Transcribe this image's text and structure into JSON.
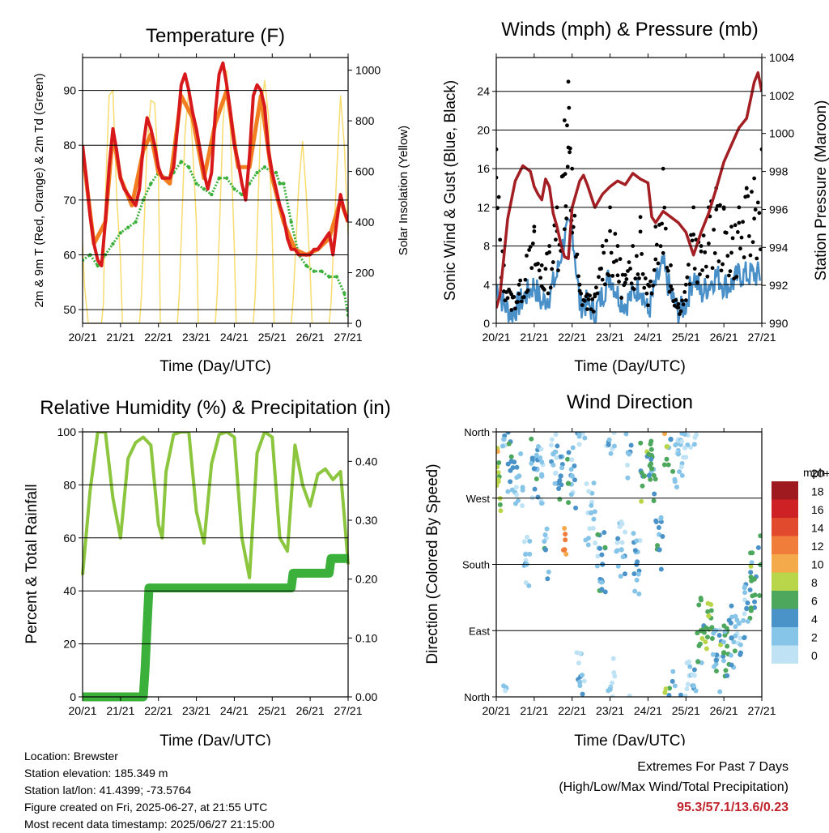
{
  "x_ticks": [
    "20/21",
    "21/21",
    "22/21",
    "23/21",
    "24/21",
    "25/21",
    "26/21",
    "27/21"
  ],
  "panels": {
    "temperature": {
      "title": "Temperature (F)",
      "xlabel": "Time (Day/UTC)",
      "ylabel_left": "2m & 9m T (Red, Orange) & 2m Td (Green)",
      "ylabel_right": "Solar Insolation (Yellow)",
      "yticks_left": [
        "50",
        "60",
        "70",
        "80",
        "90"
      ],
      "yticks_right": [
        "0",
        "200",
        "400",
        "600",
        "800",
        "1000"
      ]
    },
    "winds": {
      "title": "Winds (mph) & Pressure (mb)",
      "xlabel": "Time (Day/UTC)",
      "ylabel_left": "Sonic Wind & Gust (Blue, Black)",
      "ylabel_right": "Station Pressure (Maroon)",
      "yticks_left": [
        "0",
        "4",
        "8",
        "12",
        "16",
        "20",
        "24"
      ],
      "yticks_right": [
        "990",
        "992",
        "994",
        "996",
        "998",
        "1000",
        "1002",
        "1004"
      ]
    },
    "humidity": {
      "title": "Relative Humidity (%) & Precipitation (in)",
      "xlabel": "Time (Day/UTC)",
      "ylabel_left": "Percent & Total Rainfall",
      "yticks_left": [
        "0",
        "20",
        "40",
        "60",
        "80",
        "100"
      ],
      "yticks_right": [
        "0.00",
        "0.10",
        "0.20",
        "0.30",
        "0.40"
      ]
    },
    "direction": {
      "title": "Wind Direction",
      "xlabel": "Time (Day/UTC)",
      "ylabel_left": "Direction (Colored By Speed)",
      "yticks_left": [
        "North",
        "East",
        "South",
        "West",
        "North"
      ],
      "legend_unit": "mph",
      "legend_labels": [
        "0",
        "2",
        "4",
        "6",
        "8",
        "10",
        "12",
        "14",
        "16",
        "18",
        "20+"
      ],
      "legend_colors": [
        "#bfe3f5",
        "#86c4e8",
        "#4a93c9",
        "#4da85e",
        "#b9d64b",
        "#f4a94a",
        "#f07d3a",
        "#e14a2c",
        "#cd2126",
        "#9e1a1f"
      ]
    }
  },
  "chart_data": [
    {
      "type": "line",
      "title": "Temperature (F)",
      "xlabel": "Time (Day/UTC)",
      "ylabel": "2m & 9m T (Red, Orange) & 2m Td (Green)",
      "ylabel_right": "Solar Insolation (Yellow)",
      "x_unit": "days since 20/21",
      "ylim": [
        47.5,
        96
      ],
      "ylim_right": [
        0,
        1050
      ],
      "series": [
        {
          "name": "2m T",
          "color": "#d7191c",
          "x": [
            0,
            0.1,
            0.2,
            0.3,
            0.4,
            0.5,
            0.6,
            0.7,
            0.8,
            0.9,
            1,
            1.1,
            1.2,
            1.3,
            1.4,
            1.5,
            1.6,
            1.7,
            1.8,
            1.9,
            2,
            2.1,
            2.2,
            2.3,
            2.4,
            2.5,
            2.6,
            2.7,
            2.8,
            2.9,
            3,
            3.1,
            3.2,
            3.3,
            3.4,
            3.5,
            3.6,
            3.7,
            3.8,
            3.9,
            4,
            4.1,
            4.2,
            4.3,
            4.4,
            4.5,
            4.6,
            4.7,
            4.8,
            4.9,
            5,
            5.1,
            5.2,
            5.3,
            5.4,
            5.5,
            5.6,
            5.7,
            5.8,
            5.9,
            6,
            6.1,
            6.2,
            6.3,
            6.4,
            6.5,
            6.6,
            6.7,
            6.8,
            6.9,
            7
          ],
          "y": [
            80,
            74,
            67,
            62,
            59,
            58,
            66,
            76,
            83,
            79,
            74,
            72,
            71,
            70,
            69,
            72,
            80,
            85,
            83,
            80,
            76,
            74,
            74,
            74,
            76,
            83,
            91,
            93,
            90,
            86,
            83,
            79,
            75,
            72,
            75,
            86,
            93,
            95,
            91,
            86,
            80,
            77,
            73,
            70,
            78,
            89,
            91,
            90,
            87,
            79,
            75,
            72,
            69,
            67,
            63,
            61,
            61,
            60,
            60,
            60,
            60,
            61,
            61,
            62,
            63,
            64,
            60,
            66,
            71,
            68,
            66
          ]
        },
        {
          "name": "9m T",
          "color": "#f17f22",
          "x": [
            0,
            0.3,
            0.6,
            0.8,
            1,
            1.3,
            1.6,
            1.8,
            2,
            2.3,
            2.6,
            2.9,
            3.2,
            3.5,
            3.8,
            4.1,
            4.4,
            4.7,
            5,
            5.3,
            5.6,
            5.9,
            6.2,
            6.5,
            6.8,
            7
          ],
          "y": [
            79,
            62,
            66,
            82,
            74,
            69,
            79,
            82,
            75,
            73,
            89,
            85,
            74,
            84,
            90,
            76,
            76,
            89,
            74,
            66,
            61,
            60,
            61,
            63,
            70,
            66
          ]
        },
        {
          "name": "2m Td",
          "color": "#3bb03b",
          "x": [
            0,
            0.2,
            0.4,
            0.6,
            0.8,
            1,
            1.2,
            1.4,
            1.6,
            1.8,
            2,
            2.2,
            2.4,
            2.6,
            2.8,
            3,
            3.2,
            3.4,
            3.6,
            3.8,
            4,
            4.2,
            4.4,
            4.6,
            4.8,
            5,
            5.1,
            5.2,
            5.3,
            5.5,
            5.7,
            5.9,
            6.1,
            6.3,
            6.5,
            6.7,
            6.9,
            7
          ],
          "y": [
            59,
            60,
            58,
            60,
            62,
            64,
            65,
            66,
            70,
            73,
            75,
            74,
            75,
            77,
            76,
            73,
            72,
            71,
            74,
            74,
            72,
            71,
            73,
            75,
            76,
            75,
            75,
            73,
            73,
            66,
            60,
            58,
            57,
            57,
            56,
            56,
            53,
            49
          ]
        },
        {
          "name": "Solar Insolation",
          "color": "#f7dc6f",
          "axis": "right",
          "x": [
            0,
            0.05,
            0.15,
            0.2,
            0.3,
            0.4,
            0.5,
            0.55,
            0.6,
            0.7,
            0.8,
            0.9,
            1,
            1.05,
            1.2,
            1.5,
            1.55,
            1.7,
            1.8,
            1.9,
            2,
            2.05,
            2.2,
            2.5,
            2.55,
            2.7,
            2.8,
            2.9,
            3,
            3.05,
            3.2,
            3.5,
            3.55,
            3.7,
            3.8,
            3.9,
            4,
            4.05,
            4.2,
            4.5,
            4.55,
            4.7,
            4.8,
            4.9,
            5,
            5.05,
            5.2,
            5.5,
            5.55,
            5.7,
            5.8,
            5.9,
            6,
            6.05,
            6.2,
            6.5,
            6.55,
            6.7,
            6.8,
            6.9,
            7
          ],
          "y": [
            320,
            150,
            0,
            0,
            0,
            0,
            0,
            80,
            500,
            900,
            920,
            500,
            250,
            0,
            0,
            0,
            100,
            700,
            880,
            870,
            600,
            0,
            0,
            0,
            120,
            750,
            930,
            700,
            400,
            0,
            0,
            0,
            120,
            780,
            1000,
            750,
            300,
            0,
            0,
            0,
            110,
            820,
            960,
            820,
            350,
            0,
            0,
            0,
            90,
            550,
            720,
            500,
            200,
            0,
            0,
            0,
            80,
            600,
            900,
            700,
            350
          ]
        }
      ]
    },
    {
      "type": "line",
      "title": "Winds (mph) & Pressure (mb)",
      "xlabel": "Time (Day/UTC)",
      "ylabel": "Sonic Wind & Gust (Blue, Black)",
      "ylabel_right": "Station Pressure (Maroon)",
      "x_unit": "days since 20/21",
      "ylim": [
        0,
        27.5
      ],
      "ylim_right": [
        990,
        1004
      ],
      "series": [
        {
          "name": "Sonic Wind",
          "color": "#4a90c8",
          "x": [
            0,
            0.2,
            0.4,
            0.6,
            0.8,
            1,
            1.2,
            1.4,
            1.6,
            1.8,
            2,
            2.2,
            2.4,
            2.6,
            2.8,
            3,
            3.2,
            3.4,
            3.6,
            3.8,
            4,
            4.2,
            4.4,
            4.6,
            4.8,
            5,
            5.2,
            5.4,
            5.6,
            5.8,
            6,
            6.2,
            6.4,
            6.6,
            6.8,
            7
          ],
          "y": [
            4,
            2,
            1,
            2,
            3,
            4,
            2,
            3,
            5,
            9,
            10,
            2,
            2,
            1,
            3,
            5,
            3,
            2,
            3,
            4,
            1,
            4,
            6,
            3,
            1,
            2,
            5,
            3,
            4,
            5,
            4,
            4,
            5,
            5,
            5,
            5
          ]
        },
        {
          "name": "Gust",
          "color": "#000000",
          "x": [
            0,
            0.2,
            0.4,
            0.6,
            0.8,
            1,
            1.2,
            1.4,
            1.6,
            1.8,
            1.9,
            2,
            2.2,
            2.4,
            2.6,
            2.8,
            3,
            3.2,
            3.4,
            3.6,
            3.8,
            4,
            4.2,
            4.4,
            4.6,
            4.8,
            5,
            5.2,
            5.4,
            5.6,
            5.8,
            6,
            6.2,
            6.4,
            6.6,
            6.8,
            7
          ],
          "y": [
            18,
            6,
            3,
            4,
            7,
            10,
            6,
            8,
            12,
            21,
            25,
            16,
            4,
            3,
            3,
            8,
            12,
            8,
            5,
            8,
            11,
            4,
            10,
            16,
            6,
            2,
            4,
            12,
            8,
            12,
            14,
            12,
            10,
            12,
            14,
            15,
            18
          ]
        },
        {
          "name": "Station Pressure",
          "color": "#a31f24",
          "axis": "right",
          "x": [
            0,
            0.1,
            0.2,
            0.3,
            0.5,
            0.7,
            0.9,
            1.0,
            1.1,
            1.2,
            1.3,
            1.4,
            1.5,
            1.6,
            1.7,
            1.8,
            1.9,
            2.0,
            2.1,
            2.2,
            2.3,
            2.4,
            2.6,
            2.8,
            3.0,
            3.2,
            3.4,
            3.6,
            3.8,
            4.0,
            4.1,
            4.2,
            4.4,
            4.6,
            4.8,
            5.0,
            5.2,
            5.4,
            5.6,
            5.8,
            6.0,
            6.2,
            6.4,
            6.6,
            6.8,
            6.9,
            7.0
          ],
          "y": [
            990.8,
            991.5,
            993.5,
            995.5,
            997.5,
            998.3,
            998.0,
            997.2,
            996.8,
            996.5,
            997.6,
            997.2,
            995.8,
            995.1,
            994.2,
            993.5,
            993.4,
            996.1,
            996.8,
            997.5,
            997.8,
            997.3,
            996.1,
            996.8,
            997.2,
            997.5,
            997.3,
            997.9,
            997.6,
            997.4,
            995.6,
            995.3,
            995.9,
            995.6,
            995.3,
            994.8,
            993.6,
            994.8,
            995.8,
            997.1,
            998.5,
            999.4,
            1000.3,
            1000.8,
            1002.7,
            1003.2,
            1002.2
          ]
        }
      ]
    },
    {
      "type": "line",
      "title": "Relative Humidity (%) & Precipitation (in)",
      "xlabel": "Time (Day/UTC)",
      "ylabel": "Percent & Total Rainfall",
      "x_unit": "days since 20/21",
      "ylim": [
        0,
        100
      ],
      "ylim_right": [
        0,
        0.45
      ],
      "series": [
        {
          "name": "Relative Humidity",
          "color": "#8cc63f",
          "x": [
            0,
            0.2,
            0.4,
            0.5,
            0.6,
            0.8,
            1,
            1.2,
            1.4,
            1.6,
            1.8,
            2,
            2.1,
            2.2,
            2.4,
            2.6,
            2.8,
            3,
            3.2,
            3.4,
            3.6,
            3.8,
            4,
            4.2,
            4.4,
            4.6,
            4.8,
            5,
            5.2,
            5.4,
            5.6,
            5.8,
            6,
            6.2,
            6.4,
            6.6,
            6.8,
            6.9,
            7
          ],
          "y": [
            46,
            78,
            100,
            100,
            100,
            75,
            60,
            90,
            96,
            98,
            95,
            65,
            60,
            85,
            99,
            100,
            100,
            70,
            58,
            88,
            99,
            100,
            98,
            60,
            45,
            92,
            100,
            98,
            60,
            55,
            95,
            80,
            72,
            84,
            86,
            82,
            85,
            68,
            50
          ]
        },
        {
          "name": "Total Rainfall",
          "color": "#3bb03b",
          "axis": "right",
          "x": [
            0,
            1.6,
            1.65,
            1.7,
            1.75,
            5.5,
            5.55,
            6.5,
            6.55,
            7
          ],
          "y": [
            0,
            0,
            0.05,
            0.12,
            0.185,
            0.185,
            0.21,
            0.21,
            0.235,
            0.235
          ]
        }
      ]
    },
    {
      "type": "scatter",
      "title": "Wind Direction",
      "xlabel": "Time (Day/UTC)",
      "ylabel": "Direction (Colored By Speed)",
      "x_unit": "days since 20/21",
      "ylim": [
        "North",
        "East",
        "South",
        "West",
        "North"
      ],
      "color_by": "speed (mph)",
      "series": [
        {
          "name": "Wind Direction",
          "x": [
            0.05,
            0.2,
            0.4,
            0.6,
            0.8,
            1.0,
            1.2,
            1.3,
            1.5,
            1.7,
            1.8,
            1.9,
            2.0,
            2.2,
            2.5,
            2.8,
            3.0,
            3.3,
            3.5,
            3.7,
            3.9,
            4.1,
            4.3,
            4.5,
            4.6,
            4.8,
            5.2,
            5.4,
            5.6,
            5.8,
            6.0,
            6.2,
            6.4,
            6.6,
            6.8,
            7.0
          ],
          "dir_deg": [
            295,
            350,
            320,
            300,
            180,
            310,
            300,
            200,
            330,
            300,
            200,
            290,
            300,
            20,
            250,
            180,
            10,
            200,
            330,
            180,
            300,
            310,
            200,
            340,
            350,
            330,
            15,
            90,
            110,
            50,
            60,
            80,
            100,
            120,
            160,
            180
          ],
          "speed": [
            9,
            2,
            4,
            3,
            2,
            4,
            3,
            4,
            2,
            4,
            12,
            6,
            3,
            2,
            3,
            4,
            2,
            3,
            2,
            4,
            7,
            6,
            4,
            8,
            5,
            2,
            3,
            6,
            8,
            4,
            6,
            4,
            3,
            4,
            6,
            7
          ]
        }
      ]
    }
  ],
  "info": {
    "location": "Location: Brewster",
    "elevation": "Station elevation: 185.349 m",
    "latlon": "Station lat/lon: 41.4399; -73.5764",
    "created": "Figure created on Fri, 2025-06-27, at 21:55 UTC",
    "recent": "Most recent data timestamp: 2025/06/27 21:15:00"
  },
  "extremes": {
    "title": "Extremes For Past 7 Days",
    "subtitle": "(High/Low/Max Wind/Total Precipitation)",
    "values": "95.3/57.1/13.6/0.23"
  }
}
